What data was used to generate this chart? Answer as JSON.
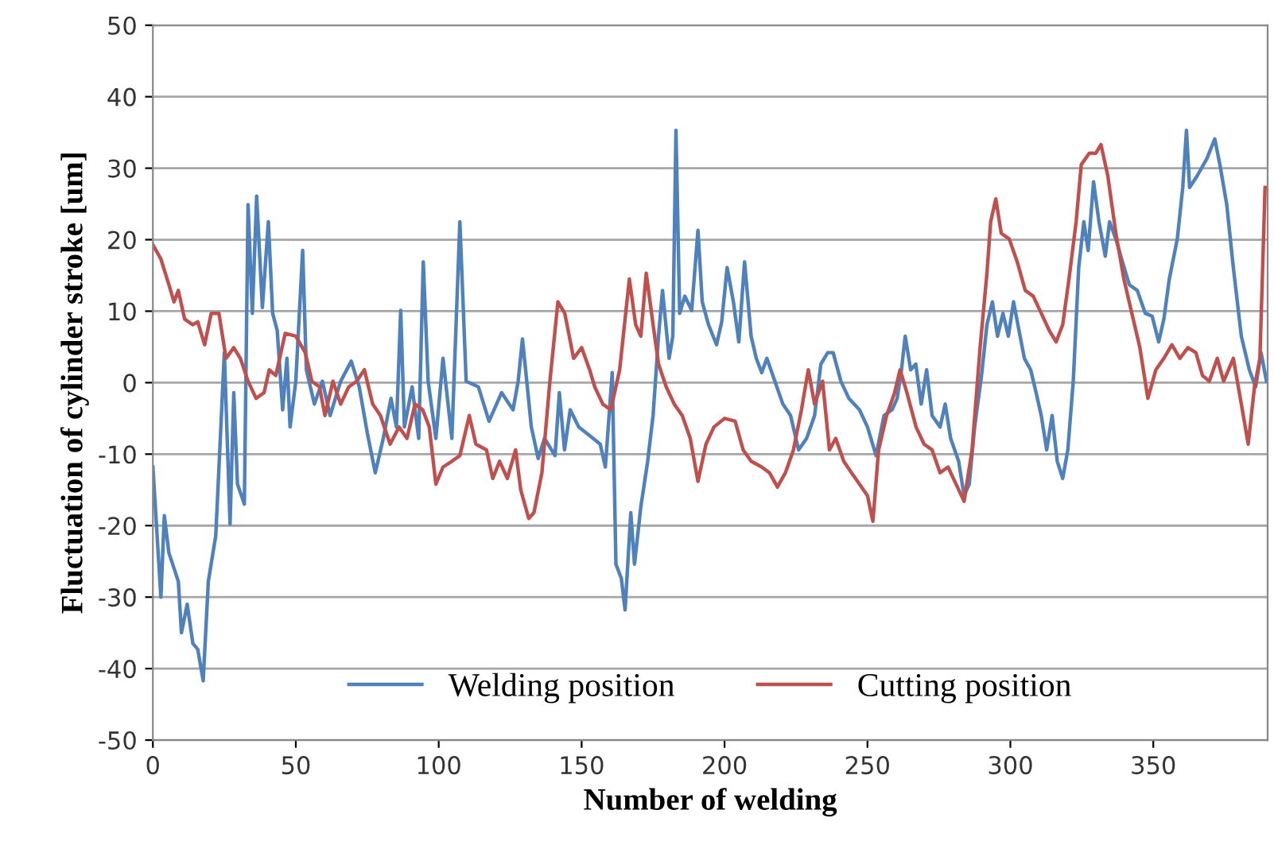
{
  "chart_data": {
    "type": "line",
    "xlabel": "Number of welding",
    "ylabel": "Fluctuation of cylinder stroke [um]",
    "xlim": [
      0,
      390
    ],
    "xticks": [
      0,
      50,
      100,
      150,
      200,
      250,
      300,
      350
    ],
    "ylim": [
      -50,
      50
    ],
    "yticks": [
      -50,
      -40,
      -30,
      -20,
      -10,
      0,
      10,
      20,
      30,
      40,
      50
    ],
    "grid": "y",
    "legend": "bottom",
    "marker": "none",
    "line_style": "solid",
    "series": [
      {
        "name": "Welding position",
        "color": "#4f81bd",
        "x": [
          0,
          2.8,
          4,
          5.6,
          8.9,
          10,
          12,
          14,
          15.7,
          17.6,
          19.4,
          22,
          25,
          27,
          28.3,
          29.6,
          32,
          33.3,
          34.8,
          36.3,
          38.3,
          40.4,
          41.9,
          43.5,
          45.4,
          46.9,
          48,
          50,
          52.4,
          53.7,
          56.5,
          59.3,
          62,
          65.7,
          69.4,
          72.2,
          75,
          77.8,
          80.6,
          83.3,
          85.2,
          86.7,
          88,
          90.7,
          93,
          94.6,
          96.3,
          99,
          101.5,
          104.6,
          107.4,
          109.6,
          113.9,
          117.6,
          122,
          126,
          127.8,
          129.3,
          130.6,
          132.4,
          134.8,
          137,
          140.7,
          142.2,
          144,
          146,
          149,
          152.8,
          156.5,
          158.3,
          160.7,
          162,
          163.9,
          165.2,
          167.2,
          168.5,
          170.7,
          173.1,
          175,
          176.9,
          178.3,
          180.6,
          181.9,
          183,
          184.3,
          186.1,
          188.5,
          190.7,
          192.2,
          194.4,
          197.2,
          199,
          200.9,
          203.1,
          205,
          207,
          209.3,
          211.1,
          213,
          214.8,
          217.6,
          220.4,
          223.1,
          225.9,
          228.7,
          231.5,
          233.7,
          236.1,
          238,
          240.7,
          243.5,
          247.2,
          250,
          253,
          255.8,
          258.6,
          260.4,
          261.9,
          263.2,
          265.1,
          266.9,
          268.8,
          270.7,
          272.6,
          275.4,
          277.2,
          279.1,
          281.9,
          283.8,
          285.6,
          287.5,
          289.9,
          291.8,
          293.7,
          295.5,
          297.4,
          299.3,
          301.1,
          303.4,
          304.9,
          307.1,
          309,
          310.8,
          312.7,
          314.6,
          316.4,
          318.3,
          320.1,
          322,
          323.9,
          325.7,
          327.2,
          329.1,
          331,
          333.2,
          334.7,
          336.9,
          339.2,
          341.6,
          344.4,
          347.2,
          349.6,
          351.9,
          353.7,
          355.6,
          358.4,
          360.3,
          361.6,
          362.7,
          365.3,
          368.7,
          371.5,
          373.3,
          375.7,
          378,
          380.8,
          383.6,
          385.8,
          387.7,
          389.6
        ],
        "values": [
          -11.8,
          -30,
          -18.6,
          -23.8,
          -27.8,
          -35,
          -31,
          -36.5,
          -37.3,
          -41.7,
          -27.8,
          -21.4,
          4.2,
          -19.8,
          -1.4,
          -14.2,
          -17,
          24.9,
          9.7,
          26.1,
          10.5,
          22.5,
          9.7,
          7.3,
          -3.8,
          3.4,
          -6.2,
          0.2,
          18.5,
          1.8,
          -3,
          0.2,
          -4.6,
          0.2,
          3,
          -0.6,
          -7,
          -12.6,
          -7.8,
          -2.2,
          -6.2,
          10.1,
          -6.2,
          -0.6,
          -7.8,
          16.9,
          0.2,
          -7.8,
          3.4,
          -7.8,
          22.5,
          0.2,
          -0.6,
          -5.4,
          -1.4,
          -3.8,
          0.2,
          6.1,
          1,
          -6.2,
          -10.6,
          -7.8,
          -10.2,
          -1.4,
          -9.4,
          -3.8,
          -6.2,
          -7.4,
          -8.6,
          -11.8,
          1.4,
          -25.4,
          -27.4,
          -31.8,
          -18.2,
          -25.4,
          -17.4,
          -11,
          -4.6,
          6.5,
          12.9,
          3.4,
          6.5,
          35.3,
          9.7,
          12.1,
          10.1,
          21.3,
          11.3,
          8.1,
          5.3,
          8.5,
          16.1,
          11.3,
          5.7,
          16.9,
          6.5,
          3.4,
          1.4,
          3.4,
          0.2,
          -3,
          -4.6,
          -9.4,
          -7.8,
          -4.6,
          2.6,
          4.2,
          4.2,
          0.2,
          -2.2,
          -3.8,
          -6.2,
          -10.2,
          -4.6,
          -3.8,
          -2.2,
          1.8,
          6.5,
          1.8,
          2.6,
          -3,
          1.8,
          -4.6,
          -6.2,
          -3,
          -7.8,
          -11,
          -15.8,
          -14.2,
          -6.2,
          1,
          8.1,
          11.3,
          6.5,
          9.7,
          6.5,
          11.3,
          6.5,
          3.4,
          1.8,
          -1.4,
          -4.6,
          -9.4,
          -4.6,
          -11,
          -13.4,
          -9.4,
          0.2,
          16.1,
          22.5,
          18.5,
          28.1,
          22.5,
          17.7,
          22.5,
          20.1,
          16.9,
          13.7,
          12.9,
          9.7,
          9.3,
          5.7,
          8.9,
          14.5,
          20.1,
          27.3,
          35.3,
          27.3,
          28.9,
          31.3,
          34.1,
          30.5,
          24.9,
          16.1,
          6.5,
          1.8,
          -0.6,
          4.2,
          0.2
        ]
      },
      {
        "name": "Cutting position",
        "color": "#c0504d",
        "x": [
          0,
          2.8,
          5.6,
          7.4,
          8.9,
          11.1,
          13.9,
          15.7,
          18.1,
          20.4,
          23.1,
          25.6,
          28.3,
          30.6,
          33.3,
          36.1,
          38.9,
          40.7,
          43,
          46.3,
          50,
          53.3,
          55.6,
          58.3,
          60.2,
          63,
          65.7,
          68.5,
          71.3,
          74,
          76.9,
          79.6,
          83,
          86.1,
          88.9,
          91.7,
          94.4,
          96.7,
          99,
          101.5,
          104.6,
          107.4,
          110.7,
          113,
          116.7,
          118.9,
          121.3,
          124,
          126.9,
          128.7,
          131.5,
          133.3,
          136.1,
          138.9,
          141.7,
          144.1,
          147.2,
          150,
          152.8,
          154.6,
          157.4,
          160.2,
          163.3,
          166.7,
          168.9,
          170.7,
          172.6,
          175,
          176.9,
          179.6,
          182.4,
          185.2,
          188,
          190.7,
          193.5,
          196.3,
          200,
          203.7,
          206.5,
          209.3,
          213,
          215.7,
          218.5,
          221.3,
          224.1,
          226.9,
          229.3,
          231.5,
          234.3,
          236.7,
          238.9,
          241.7,
          244.4,
          247.2,
          250,
          251.9,
          253.9,
          256.7,
          259.5,
          261.4,
          263.8,
          267,
          269.8,
          272.6,
          275.4,
          278.2,
          281,
          283.8,
          286.6,
          289.4,
          291.8,
          293.1,
          294.9,
          296.8,
          299.6,
          302.4,
          305.2,
          308,
          310.8,
          313.6,
          316,
          318.3,
          320.5,
          323,
          324.8,
          327.6,
          329.9,
          331.7,
          334.1,
          336.9,
          339.7,
          342.5,
          345.3,
          348.1,
          350.9,
          353.7,
          356.5,
          359.3,
          362.1,
          364.9,
          367.2,
          369.6,
          372.4,
          374.6,
          378,
          380.8,
          383.2,
          385.4,
          387.3,
          389.1
        ],
        "values": [
          19.3,
          17.3,
          13.7,
          11.3,
          12.9,
          8.9,
          8.1,
          8.5,
          5.3,
          9.7,
          9.7,
          3.4,
          4.9,
          3.4,
          0.2,
          -2.2,
          -1.4,
          1.8,
          1,
          6.9,
          6.5,
          4.2,
          0.2,
          -0.6,
          -4.6,
          0.2,
          -3,
          -0.6,
          0.2,
          1.8,
          -3,
          -4.6,
          -8.6,
          -6.2,
          -7.8,
          -3,
          -3.8,
          -6.2,
          -14.2,
          -11.8,
          -11,
          -10.2,
          -4.6,
          -8.6,
          -9.4,
          -13.4,
          -11,
          -13.4,
          -9.4,
          -15,
          -19,
          -18.2,
          -12.6,
          0.2,
          11.3,
          9.7,
          3.4,
          4.9,
          1.8,
          -0.6,
          -3,
          -3.8,
          1.8,
          14.5,
          8.1,
          6.5,
          15.3,
          8.1,
          2.6,
          -0.6,
          -3,
          -4.6,
          -7.8,
          -13.8,
          -8.6,
          -6.2,
          -5,
          -5.4,
          -9.4,
          -11,
          -11.8,
          -12.6,
          -14.6,
          -12.6,
          -9.4,
          -3.8,
          1.8,
          -3,
          0.2,
          -9.4,
          -7.8,
          -11,
          -12.6,
          -14.2,
          -15.8,
          -19.4,
          -9.4,
          -4.6,
          -1.4,
          1.8,
          -1.4,
          -6.2,
          -8.6,
          -9.4,
          -12.6,
          -11.8,
          -14.2,
          -16.6,
          -9.4,
          4.9,
          15.3,
          22.5,
          25.7,
          20.9,
          20.1,
          16.9,
          12.9,
          12.1,
          9.7,
          7.3,
          5.7,
          8.1,
          14.5,
          22.5,
          30.5,
          32.1,
          32.1,
          33.3,
          28.9,
          20.9,
          14.5,
          9.7,
          4.9,
          -2.2,
          1.8,
          3.4,
          5.3,
          3.4,
          4.9,
          4.2,
          1,
          0.2,
          3.4,
          0.2,
          3.4,
          -3,
          -8.6,
          -0.6,
          3.4,
          27.3
        ]
      }
    ]
  }
}
